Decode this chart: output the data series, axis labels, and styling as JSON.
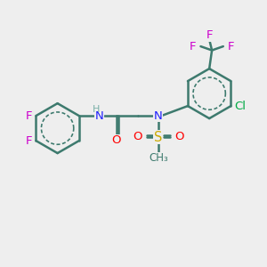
{
  "bg_color": "#eeeeee",
  "bond_color": "#3d7a6e",
  "bond_width": 1.8,
  "atom_colors": {
    "F": "#cc00cc",
    "Cl": "#00aa44",
    "N": "#2020ff",
    "O": "#ff0000",
    "S": "#ccaa00",
    "C": "#3d7a6e",
    "H": "#7ab0a8"
  },
  "font_size": 9.5
}
